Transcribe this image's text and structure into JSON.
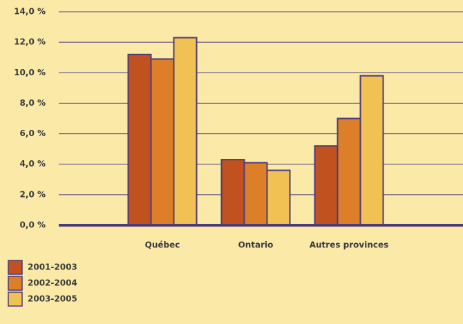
{
  "chart_data": {
    "type": "bar",
    "categories": [
      "Québec",
      "Ontario",
      "Autres provinces"
    ],
    "series": [
      {
        "name": "2001-2003",
        "color": "#c1511f",
        "values": [
          11.2,
          4.3,
          5.2
        ]
      },
      {
        "name": "2002-2004",
        "color": "#dd7f29",
        "values": [
          10.9,
          4.1,
          7.0
        ]
      },
      {
        "name": "2003-2005",
        "color": "#f1c153",
        "values": [
          12.3,
          3.6,
          9.8
        ]
      }
    ],
    "ylim": [
      0,
      14
    ],
    "yticks": [
      {
        "value": 0,
        "label": "0,0 %"
      },
      {
        "value": 2,
        "label": "2,0 %"
      },
      {
        "value": 4,
        "label": "4,0 %"
      },
      {
        "value": 6,
        "label": "6,0 %"
      },
      {
        "value": 8,
        "label": "8,0 %"
      },
      {
        "value": 10,
        "label": "10,0 %"
      },
      {
        "value": 12,
        "label": "12,0 %"
      },
      {
        "value": 14,
        "label": "14,0 %"
      }
    ],
    "grid": true,
    "legend": "bottom-left"
  }
}
